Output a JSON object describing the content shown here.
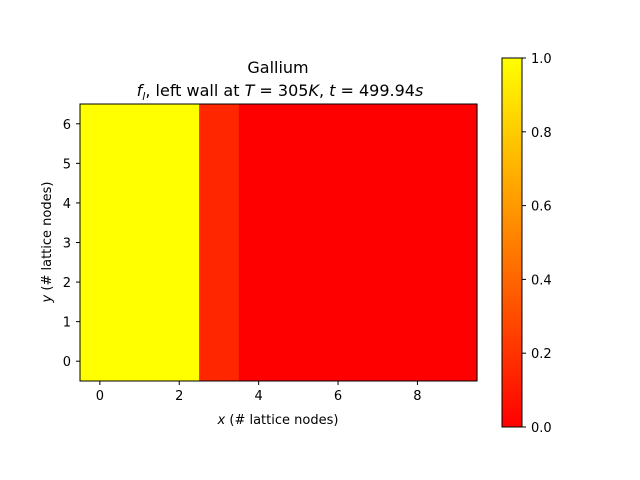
{
  "chart_data": {
    "type": "heatmap",
    "title": "Gallium",
    "subtitle": {
      "f": "f",
      "sub": "l",
      "t1": ", left wall at ",
      "T": "T",
      "eq1": " = 305",
      "K": "K",
      "t2": ", ",
      "t": "t",
      "eq2": " = 499.94",
      "s": "s"
    },
    "xlabel": {
      "var": "x",
      "rest": " (# lattice nodes)"
    },
    "ylabel": {
      "var": "y",
      "rest": " (# lattice nodes)"
    },
    "xlim": [
      -0.5,
      9.5
    ],
    "ylim": [
      -0.5,
      6.5
    ],
    "xticks": [
      0,
      2,
      4,
      6,
      8
    ],
    "yticks": [
      0,
      1,
      2,
      3,
      4,
      5,
      6
    ],
    "columns": [
      0,
      1,
      2,
      3,
      4,
      5,
      6,
      7,
      8,
      9
    ],
    "rows": [
      0,
      1,
      2,
      3,
      4,
      5,
      6
    ],
    "column_values": [
      1.0,
      1.0,
      1.0,
      0.15,
      0.0,
      0.0,
      0.0,
      0.0,
      0.0,
      0.0
    ],
    "colormap": "autumn",
    "colormap_stops": [
      "#ff0000",
      "#ffff00"
    ],
    "colorbar": {
      "range": [
        0.0,
        1.0
      ],
      "ticks": [
        "0.0",
        "0.2",
        "0.4",
        "0.6",
        "0.8",
        "1.0"
      ]
    },
    "grid": false
  }
}
